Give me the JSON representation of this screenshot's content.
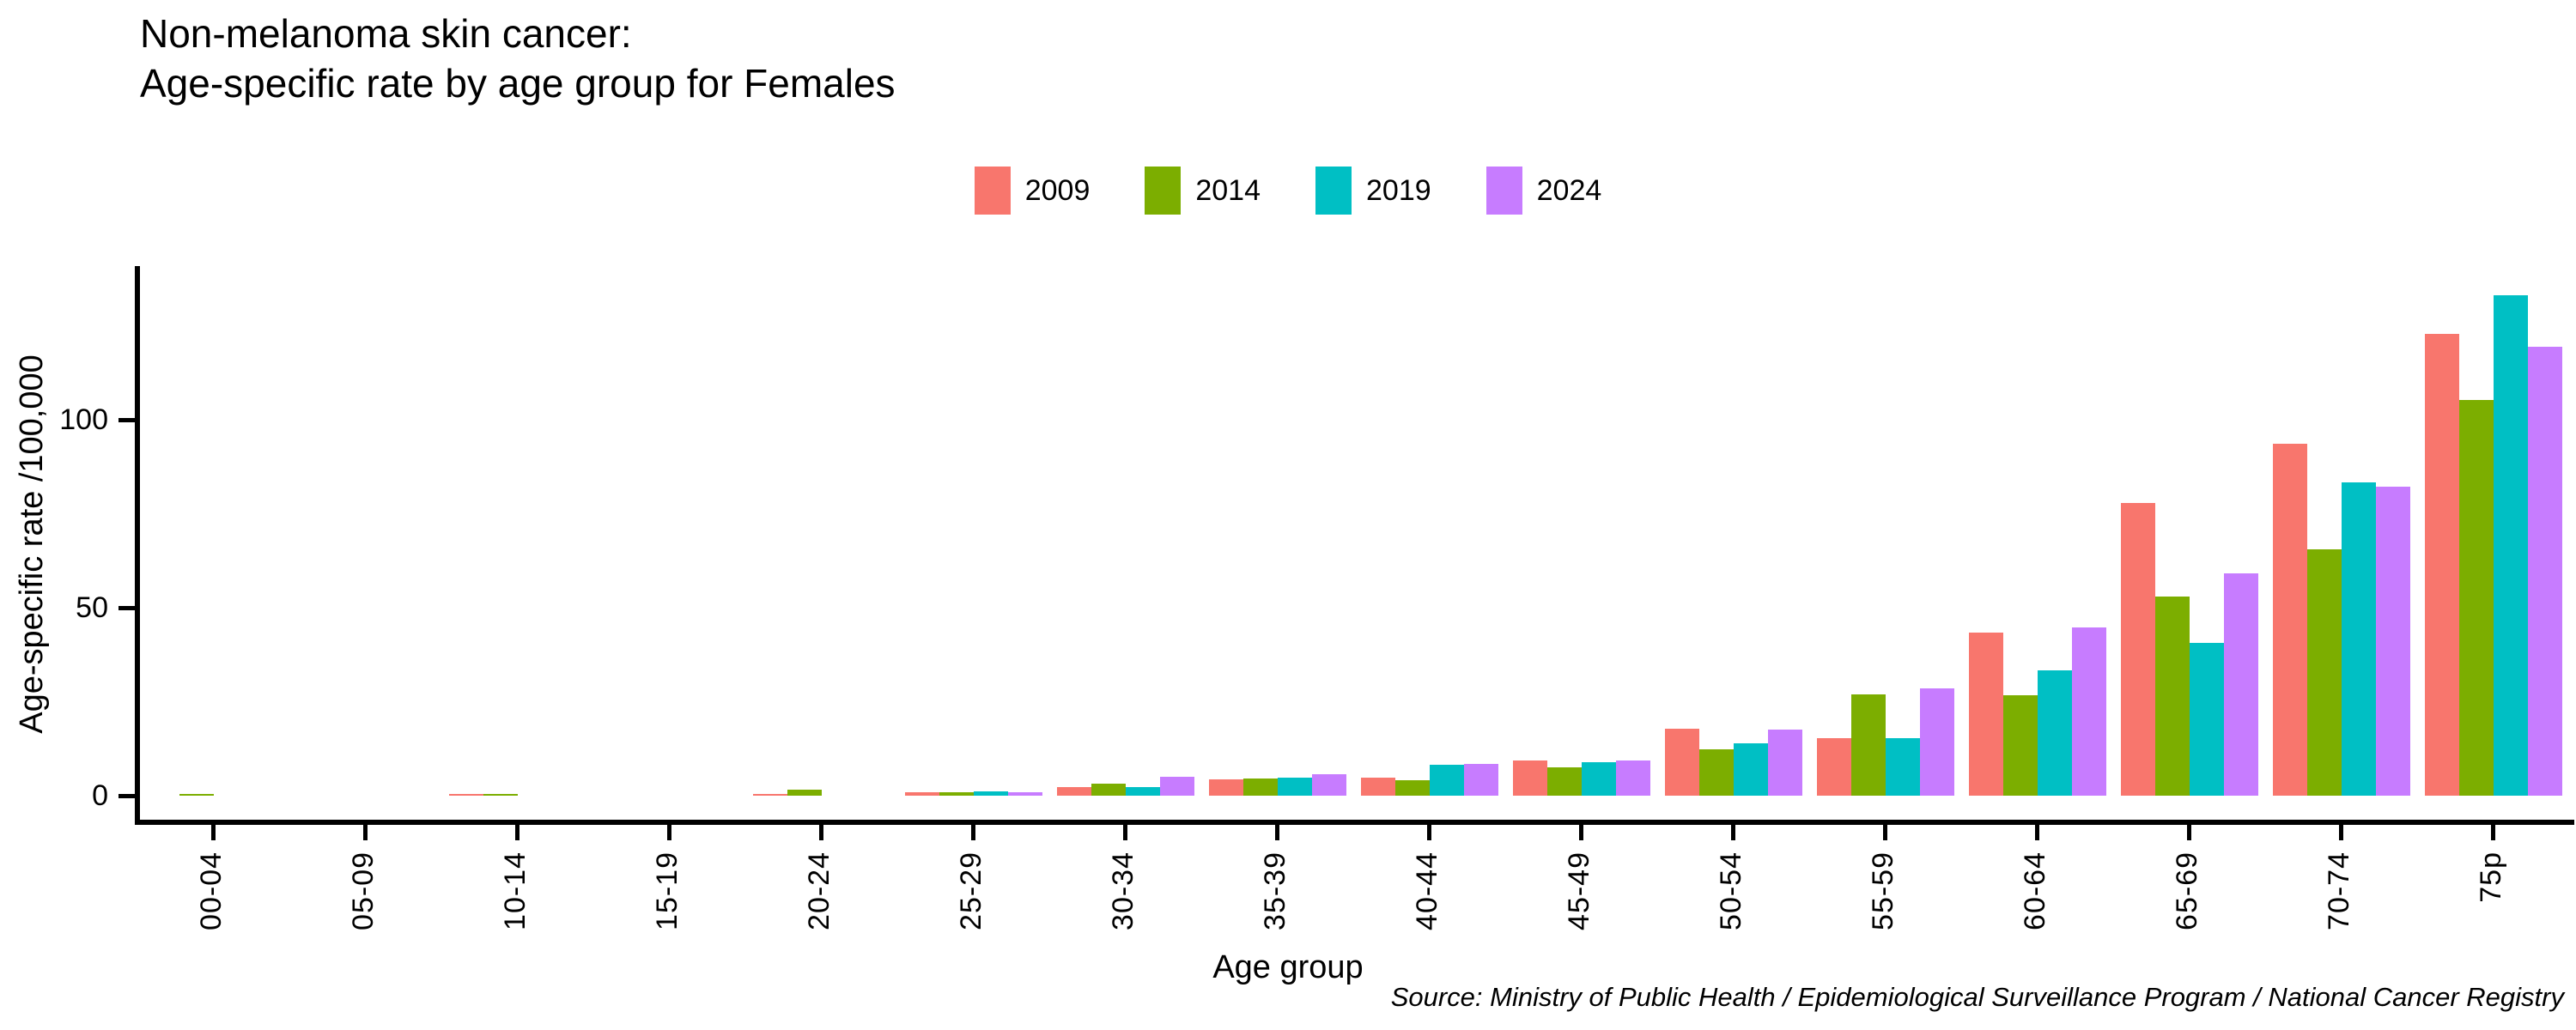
{
  "title": {
    "line1": "Non-melanoma skin cancer:",
    "line2": "Age-specific rate by age group for Females"
  },
  "source": "Source: Ministry of Public Health / Epidemiological Surveillance Program / National Cancer Registry",
  "chart_data": {
    "type": "bar",
    "title": "Non-melanoma skin cancer: Age-specific rate by age group for Females",
    "xlabel": "Age group",
    "ylabel": "Age-specific rate /100,000",
    "yticks": [
      0,
      50,
      100
    ],
    "ylim": [
      0,
      140
    ],
    "grid": false,
    "legend_position": "top",
    "categories": [
      "00-04",
      "05-09",
      "10-14",
      "15-19",
      "20-24",
      "25-29",
      "30-34",
      "35-39",
      "40-44",
      "45-49",
      "50-54",
      "55-59",
      "60-64",
      "65-69",
      "70-74",
      "75p"
    ],
    "series": [
      {
        "name": "2009",
        "color": "#F8766D",
        "values": [
          0,
          0,
          0.5,
          0,
          0.4,
          1.0,
          2.3,
          4.4,
          4.7,
          9.4,
          17.7,
          15.2,
          43.4,
          77.9,
          93.5,
          122.8
        ]
      },
      {
        "name": "2014",
        "color": "#7CAE00",
        "values": [
          0.4,
          0,
          0.4,
          0,
          1.5,
          1.0,
          3.2,
          4.6,
          4.1,
          7.6,
          12.4,
          26.9,
          26.7,
          52.9,
          65.6,
          105.3
        ]
      },
      {
        "name": "2019",
        "color": "#00BFC4",
        "values": [
          0,
          0,
          0,
          0,
          0,
          1.1,
          2.3,
          4.9,
          8.3,
          9.0,
          14.0,
          15.2,
          33.3,
          40.7,
          83.3,
          133.1
        ]
      },
      {
        "name": "2024",
        "color": "#C77CFF",
        "values": [
          0,
          0,
          0,
          0,
          0,
          1.0,
          5.1,
          5.8,
          8.5,
          9.3,
          17.5,
          28.5,
          44.8,
          59.2,
          82.1,
          119.3
        ]
      }
    ]
  }
}
